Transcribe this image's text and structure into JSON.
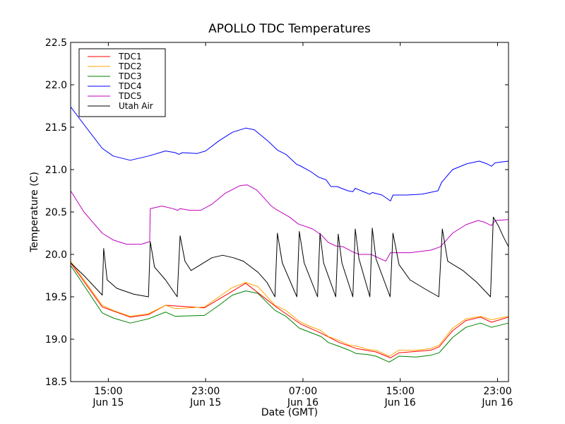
{
  "chart_data": {
    "type": "line",
    "title": "APOLLO TDC Temperatures",
    "xlabel": "Date (GMT)",
    "ylabel": "Temperature (C)",
    "x_units": "hours since Jun 15 00:00 GMT",
    "xlim": [
      11.9,
      47.9
    ],
    "ylim": [
      18.5,
      22.5
    ],
    "grid": false,
    "legend_position": "top-left",
    "yticks": [
      {
        "value": 18.5,
        "label": "18.5"
      },
      {
        "value": 19.0,
        "label": "19.0"
      },
      {
        "value": 19.5,
        "label": "19.5"
      },
      {
        "value": 20.0,
        "label": "20.0"
      },
      {
        "value": 20.5,
        "label": "20.5"
      },
      {
        "value": 21.0,
        "label": "21.0"
      },
      {
        "value": 21.5,
        "label": "21.5"
      },
      {
        "value": 22.0,
        "label": "22.0"
      },
      {
        "value": 22.5,
        "label": "22.5"
      }
    ],
    "xticks": [
      {
        "value": 15,
        "time": "15:00",
        "date": "Jun 15"
      },
      {
        "value": 23,
        "time": "23:00",
        "date": "Jun 15"
      },
      {
        "value": 31,
        "time": "07:00",
        "date": "Jun 16"
      },
      {
        "value": 39,
        "time": "15:00",
        "date": "Jun 16"
      },
      {
        "value": 47,
        "time": "23:00",
        "date": "Jun 16"
      }
    ],
    "series": [
      {
        "name": "TDC1",
        "color": "#ff0000",
        "points": [
          [
            11.9,
            19.9
          ],
          [
            14.5,
            19.38
          ],
          [
            16.8,
            19.26
          ],
          [
            18.3,
            19.29
          ],
          [
            19.7,
            19.4
          ],
          [
            22.9,
            19.37
          ],
          [
            26.3,
            19.66
          ],
          [
            28.8,
            19.38
          ],
          [
            30.8,
            19.18
          ],
          [
            32.5,
            19.07
          ],
          [
            34.0,
            18.96
          ],
          [
            35.4,
            18.89
          ],
          [
            37.0,
            18.85
          ],
          [
            38.2,
            18.78
          ],
          [
            38.9,
            18.84
          ],
          [
            41.5,
            18.87
          ],
          [
            42.2,
            18.91
          ],
          [
            43.3,
            19.1
          ],
          [
            44.4,
            19.22
          ],
          [
            45.6,
            19.26
          ],
          [
            46.5,
            19.2
          ],
          [
            47.9,
            19.26
          ]
        ]
      },
      {
        "name": "TDC2",
        "color": "#ffa500",
        "points": [
          [
            11.9,
            19.92
          ],
          [
            14.5,
            19.4
          ],
          [
            15.4,
            19.34
          ],
          [
            16.8,
            19.27
          ],
          [
            18.3,
            19.3
          ],
          [
            19.7,
            19.4
          ],
          [
            20.5,
            19.36
          ],
          [
            22.9,
            19.38
          ],
          [
            24.1,
            19.5
          ],
          [
            25.2,
            19.61
          ],
          [
            26.3,
            19.67
          ],
          [
            27.3,
            19.62
          ],
          [
            28.7,
            19.4
          ],
          [
            29.6,
            19.34
          ],
          [
            30.7,
            19.21
          ],
          [
            31.6,
            19.15
          ],
          [
            32.5,
            19.1
          ],
          [
            33.1,
            19.03
          ],
          [
            33.9,
            18.99
          ],
          [
            34.8,
            18.93
          ],
          [
            35.4,
            18.92
          ],
          [
            36.3,
            18.88
          ],
          [
            37.0,
            18.87
          ],
          [
            38.1,
            18.8
          ],
          [
            38.9,
            18.87
          ],
          [
            40.3,
            18.87
          ],
          [
            41.5,
            18.89
          ],
          [
            42.2,
            18.93
          ],
          [
            43.3,
            19.13
          ],
          [
            44.4,
            19.24
          ],
          [
            45.6,
            19.27
          ],
          [
            46.5,
            19.23
          ],
          [
            47.9,
            19.27
          ]
        ]
      },
      {
        "name": "TDC3",
        "color": "#008000",
        "points": [
          [
            11.9,
            19.87
          ],
          [
            14.5,
            19.31
          ],
          [
            15.4,
            19.25
          ],
          [
            16.8,
            19.19
          ],
          [
            18.3,
            19.24
          ],
          [
            19.7,
            19.32
          ],
          [
            20.5,
            19.27
          ],
          [
            22.9,
            19.28
          ],
          [
            24.1,
            19.4
          ],
          [
            25.2,
            19.52
          ],
          [
            26.3,
            19.57
          ],
          [
            27.3,
            19.54
          ],
          [
            28.7,
            19.34
          ],
          [
            29.6,
            19.27
          ],
          [
            30.7,
            19.13
          ],
          [
            31.6,
            19.08
          ],
          [
            32.5,
            19.03
          ],
          [
            33.1,
            18.96
          ],
          [
            33.9,
            18.92
          ],
          [
            34.8,
            18.87
          ],
          [
            35.4,
            18.83
          ],
          [
            36.3,
            18.82
          ],
          [
            37.0,
            18.8
          ],
          [
            38.1,
            18.73
          ],
          [
            38.9,
            18.8
          ],
          [
            40.3,
            18.79
          ],
          [
            41.5,
            18.81
          ],
          [
            42.2,
            18.84
          ],
          [
            43.3,
            19.02
          ],
          [
            44.4,
            19.14
          ],
          [
            45.6,
            19.19
          ],
          [
            46.5,
            19.14
          ],
          [
            47.9,
            19.19
          ]
        ]
      },
      {
        "name": "TDC4",
        "color": "#0000ff",
        "points": [
          [
            11.9,
            21.74
          ],
          [
            12.9,
            21.55
          ],
          [
            14.5,
            21.25
          ],
          [
            15.4,
            21.16
          ],
          [
            16.8,
            21.11
          ],
          [
            18.3,
            21.16
          ],
          [
            19.7,
            21.22
          ],
          [
            20.5,
            21.2
          ],
          [
            20.8,
            21.18
          ],
          [
            21.1,
            21.2
          ],
          [
            22.3,
            21.19
          ],
          [
            23.0,
            21.22
          ],
          [
            24.1,
            21.34
          ],
          [
            25.2,
            21.44
          ],
          [
            26.3,
            21.49
          ],
          [
            27.0,
            21.47
          ],
          [
            28.1,
            21.34
          ],
          [
            28.9,
            21.23
          ],
          [
            29.6,
            21.18
          ],
          [
            30.5,
            21.06
          ],
          [
            30.7,
            21.05
          ],
          [
            31.6,
            20.98
          ],
          [
            32.3,
            20.91
          ],
          [
            32.9,
            20.88
          ],
          [
            33.3,
            20.8
          ],
          [
            33.8,
            20.8
          ],
          [
            34.7,
            20.75
          ],
          [
            35.1,
            20.74
          ],
          [
            35.3,
            20.78
          ],
          [
            35.8,
            20.75
          ],
          [
            36.5,
            20.71
          ],
          [
            36.7,
            20.73
          ],
          [
            37.5,
            20.7
          ],
          [
            38.2,
            20.63
          ],
          [
            38.4,
            20.7
          ],
          [
            39.5,
            20.7
          ],
          [
            40.8,
            20.71
          ],
          [
            42.1,
            20.75
          ],
          [
            42.4,
            20.85
          ],
          [
            43.3,
            21.0
          ],
          [
            44.5,
            21.07
          ],
          [
            45.5,
            21.1
          ],
          [
            46.1,
            21.07
          ],
          [
            46.5,
            21.04
          ],
          [
            46.8,
            21.08
          ],
          [
            47.9,
            21.1
          ]
        ]
      },
      {
        "name": "TDC5",
        "color": "#bf00bf",
        "points": [
          [
            11.9,
            20.75
          ],
          [
            13.0,
            20.5
          ],
          [
            14.5,
            20.25
          ],
          [
            15.4,
            20.17
          ],
          [
            16.5,
            20.12
          ],
          [
            17.7,
            20.12
          ],
          [
            18.4,
            20.15
          ],
          [
            18.45,
            20.54
          ],
          [
            19.4,
            20.57
          ],
          [
            20.3,
            20.54
          ],
          [
            20.7,
            20.52
          ],
          [
            20.9,
            20.54
          ],
          [
            21.7,
            20.52
          ],
          [
            22.6,
            20.52
          ],
          [
            23.5,
            20.59
          ],
          [
            24.6,
            20.72
          ],
          [
            25.8,
            20.81
          ],
          [
            26.4,
            20.82
          ],
          [
            27.2,
            20.76
          ],
          [
            28.4,
            20.57
          ],
          [
            28.8,
            20.53
          ],
          [
            29.9,
            20.44
          ],
          [
            30.6,
            20.36
          ],
          [
            31.8,
            20.3
          ],
          [
            32.5,
            20.23
          ],
          [
            33.1,
            20.14
          ],
          [
            33.7,
            20.1
          ],
          [
            34.3,
            20.09
          ],
          [
            35.1,
            20.03
          ],
          [
            35.6,
            20.0
          ],
          [
            36.6,
            20.0
          ],
          [
            37.8,
            19.92
          ],
          [
            38.2,
            20.02
          ],
          [
            39.8,
            20.02
          ],
          [
            41.5,
            20.05
          ],
          [
            42.3,
            20.09
          ],
          [
            43.3,
            20.25
          ],
          [
            44.4,
            20.35
          ],
          [
            45.4,
            20.4
          ],
          [
            45.9,
            20.38
          ],
          [
            46.5,
            20.34
          ],
          [
            46.8,
            20.4
          ],
          [
            47.9,
            20.41
          ]
        ]
      },
      {
        "name": "Utah Air",
        "color": "#000000",
        "points": [
          [
            11.9,
            19.9
          ],
          [
            13.0,
            19.75
          ],
          [
            14.5,
            19.52
          ],
          [
            14.62,
            20.07
          ],
          [
            14.9,
            19.7
          ],
          [
            15.7,
            19.6
          ],
          [
            17.1,
            19.53
          ],
          [
            18.3,
            19.5
          ],
          [
            18.45,
            20.15
          ],
          [
            18.8,
            19.85
          ],
          [
            19.7,
            19.7
          ],
          [
            20.66,
            19.5
          ],
          [
            20.9,
            20.22
          ],
          [
            21.3,
            19.92
          ],
          [
            21.8,
            19.81
          ],
          [
            22.6,
            19.88
          ],
          [
            23.5,
            19.96
          ],
          [
            24.4,
            19.99
          ],
          [
            25.3,
            19.96
          ],
          [
            26.1,
            19.92
          ],
          [
            27.3,
            19.79
          ],
          [
            28.04,
            19.67
          ],
          [
            28.7,
            19.5
          ],
          [
            28.9,
            20.25
          ],
          [
            29.3,
            19.9
          ],
          [
            30.5,
            19.5
          ],
          [
            30.7,
            20.27
          ],
          [
            31.1,
            19.9
          ],
          [
            32.2,
            19.5
          ],
          [
            32.4,
            20.25
          ],
          [
            32.7,
            19.9
          ],
          [
            33.7,
            19.5
          ],
          [
            33.9,
            20.24
          ],
          [
            34.2,
            19.9
          ],
          [
            35.1,
            19.5
          ],
          [
            35.3,
            20.3
          ],
          [
            35.6,
            19.95
          ],
          [
            36.5,
            19.5
          ],
          [
            36.7,
            20.31
          ],
          [
            37.0,
            19.95
          ],
          [
            38.17,
            19.5
          ],
          [
            38.4,
            20.25
          ],
          [
            38.9,
            19.88
          ],
          [
            39.8,
            19.7
          ],
          [
            40.95,
            19.6
          ],
          [
            42.17,
            19.5
          ],
          [
            42.46,
            20.3
          ],
          [
            42.9,
            19.92
          ],
          [
            44.15,
            19.81
          ],
          [
            45.3,
            19.67
          ],
          [
            46.42,
            19.5
          ],
          [
            46.65,
            20.44
          ],
          [
            47.06,
            20.34
          ],
          [
            47.47,
            20.21
          ],
          [
            47.9,
            20.09
          ]
        ]
      }
    ]
  }
}
